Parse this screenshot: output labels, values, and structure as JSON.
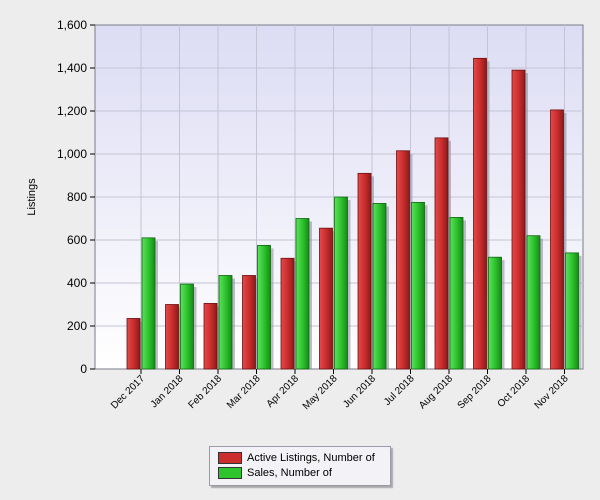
{
  "chart_data": {
    "type": "bar",
    "categories": [
      "Dec 2017",
      "Jan 2018",
      "Feb 2018",
      "Mar 2018",
      "Apr 2018",
      "May 2018",
      "Jun 2018",
      "Jul 2018",
      "Aug 2018",
      "Sep 2018",
      "Oct 2018",
      "Nov 2018"
    ],
    "series": [
      {
        "name": "Active Listings, Number of",
        "color": "#cc2e2e",
        "values": [
          235,
          300,
          305,
          435,
          515,
          655,
          910,
          1015,
          1075,
          1445,
          1390,
          1205
        ]
      },
      {
        "name": "Sales, Number of",
        "color": "#2ec42e",
        "values": [
          610,
          395,
          435,
          575,
          700,
          800,
          770,
          775,
          705,
          520,
          620,
          540
        ]
      }
    ],
    "ylabel": "Listings",
    "ylim": [
      0,
      1600
    ],
    "yticks": [
      0,
      200,
      400,
      600,
      800,
      1000,
      1200,
      1400,
      1600
    ],
    "ytick_labels": [
      "0",
      "200",
      "400",
      "600",
      "800",
      "1,000",
      "1,200",
      "1,400",
      "1,600"
    ],
    "grid": true,
    "legend_position": "bottom"
  }
}
